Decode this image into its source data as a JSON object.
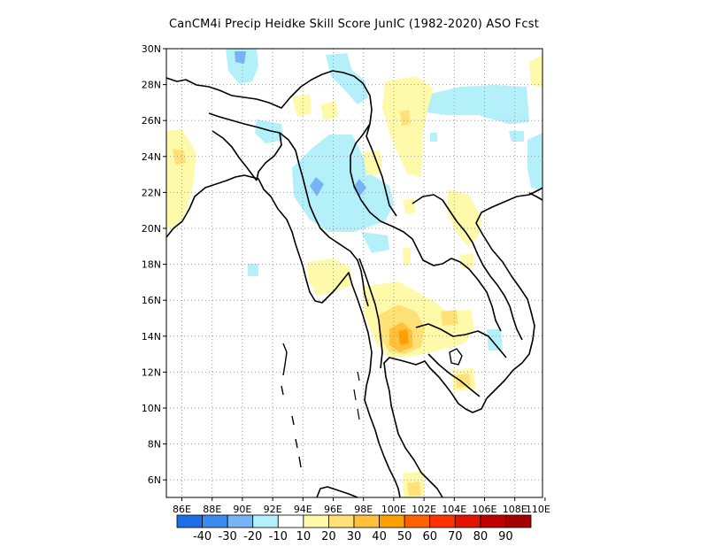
{
  "title": "CanCM4i Precip Heidke Skill Score JunIC (1982-2020) ASO Fcst",
  "lat_labels": [
    "30N",
    "28N",
    "26N",
    "24N",
    "22N",
    "20N",
    "18N",
    "16N",
    "14N",
    "12N",
    "10N",
    "8N",
    "6N"
  ],
  "lon_labels": [
    "86E",
    "88E",
    "90E",
    "92E",
    "94E",
    "96E",
    "98E",
    "100E",
    "102E",
    "104E",
    "106E",
    "108E",
    "110E"
  ],
  "colorbar": {
    "colors": [
      "#1e6ee6",
      "#3c8cf0",
      "#78b4f5",
      "#b4f0fa",
      "#ffffff",
      "#fffaaa",
      "#ffe178",
      "#ffc03c",
      "#ffa000",
      "#ff6000",
      "#ff3200",
      "#e11400",
      "#c00000",
      "#a50000"
    ],
    "labels": [
      "-40",
      "-30",
      "-20",
      "-10",
      "10",
      "20",
      "30",
      "40",
      "50",
      "60",
      "70",
      "80",
      "90"
    ]
  }
}
